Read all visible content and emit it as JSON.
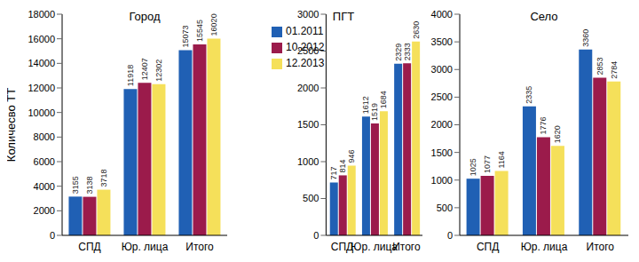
{
  "chart_data": [
    {
      "type": "bar",
      "title": "Город",
      "y_label": "Количесво ТТ",
      "categories": [
        "СПД",
        "Юр. лица",
        "Итого"
      ],
      "series": [
        {
          "name": "01.2011",
          "color": "#2060b4",
          "values": [
            3155,
            11918,
            15073
          ]
        },
        {
          "name": "10.2012",
          "color": "#9b1b4b",
          "values": [
            3138,
            12407,
            15545
          ]
        },
        {
          "name": "12.2013",
          "color": "#f5e05a",
          "values": [
            3718,
            12302,
            16020
          ]
        }
      ],
      "ylim": [
        0,
        18000
      ],
      "yticks": [
        0,
        2000,
        4000,
        6000,
        8000,
        10000,
        12000,
        14000,
        16000,
        18000
      ],
      "data_labels": true,
      "grid": false
    },
    {
      "type": "bar",
      "title": "ПГТ",
      "categories": [
        "СПД",
        "Юр. лица",
        "Итого"
      ],
      "series": [
        {
          "name": "01.2011",
          "color": "#2060b4",
          "values": [
            717,
            1612,
            2329
          ]
        },
        {
          "name": "10.2012",
          "color": "#9b1b4b",
          "values": [
            814,
            1519,
            2333
          ]
        },
        {
          "name": "12.2013",
          "color": "#f5e05a",
          "values": [
            946,
            1684,
            2630
          ]
        }
      ],
      "ylim": [
        0,
        3000
      ],
      "yticks": [
        0,
        500,
        1000,
        1500,
        2000,
        2500,
        3000
      ],
      "data_labels": true,
      "grid": false,
      "legend": "upper left"
    },
    {
      "type": "bar",
      "title": "Село",
      "categories": [
        "СПД",
        "Юр. лица",
        "Итого"
      ],
      "series": [
        {
          "name": "01.2011",
          "color": "#2060b4",
          "values": [
            1025,
            2335,
            3360
          ]
        },
        {
          "name": "10.2012",
          "color": "#9b1b4b",
          "values": [
            1077,
            1776,
            2853
          ]
        },
        {
          "name": "12.2013",
          "color": "#f5e05a",
          "values": [
            1164,
            1620,
            2784
          ]
        }
      ],
      "ylim": [
        0,
        4000
      ],
      "yticks": [
        0,
        500,
        1000,
        1500,
        2000,
        2500,
        3000,
        3500,
        4000
      ],
      "data_labels": true,
      "grid": false
    }
  ]
}
